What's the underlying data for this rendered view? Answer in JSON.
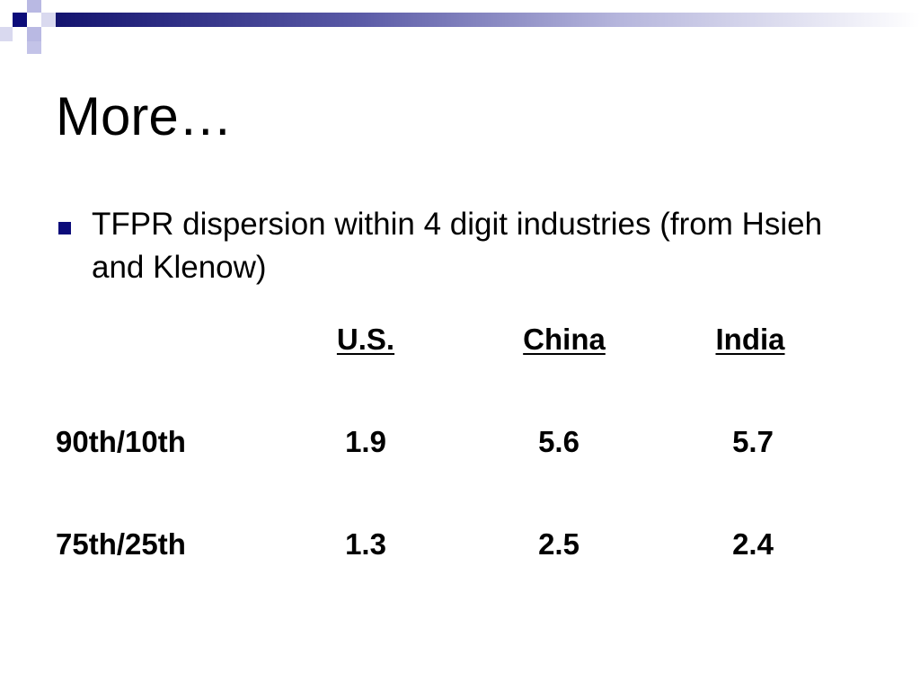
{
  "slide": {
    "title": "More…",
    "bullet": "TFPR dispersion within 4 digit industries (from Hsieh and Klenow)"
  },
  "table": {
    "columns": [
      "U.S.",
      "China",
      "India"
    ],
    "rows": [
      {
        "label": "90th/10th",
        "values": [
          "1.9",
          "5.6",
          "5.7"
        ]
      },
      {
        "label": "75th/25th",
        "values": [
          "1.3",
          "2.5",
          "2.4"
        ]
      }
    ]
  },
  "colors": {
    "bullet": "#0c0c7a",
    "header_dark": "#0c0c7a"
  }
}
